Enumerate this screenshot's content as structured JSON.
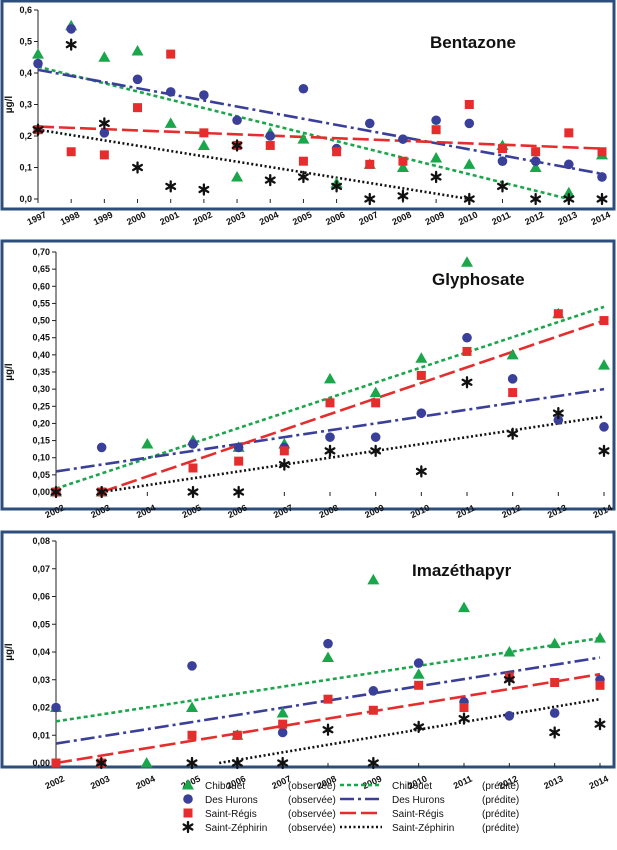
{
  "colors": {
    "Chibouet": "#1aa64a",
    "Des Hurons": "#3a3f9a",
    "Saint-Régis": "#e52d2d",
    "Saint-Zéphirin": "#111111",
    "frame": "#2d4d7a"
  },
  "legend": {
    "entries": [
      {
        "series": "Chibouet",
        "label": "Chibouet",
        "obs": "(observée)",
        "pred": "(prédite)",
        "marker": "triangle",
        "dash": "4,3"
      },
      {
        "series": "Des Hurons",
        "label": "Des Hurons",
        "obs": "(observée)",
        "pred": "(prédite)",
        "marker": "circle",
        "dash": "14,4,3,4"
      },
      {
        "series": "Saint-Régis",
        "label": "Saint-Régis",
        "obs": "(observée)",
        "pred": "(prédite)",
        "marker": "square",
        "dash": "16,5"
      },
      {
        "series": "Saint-Zéphirin",
        "label": "Saint-Zéphirin",
        "obs": "(observée)",
        "pred": "(prédite)",
        "marker": "asterisk",
        "dash": "2,2.5"
      }
    ]
  },
  "chart_data": [
    {
      "type": "scatter",
      "title": "Bentazone",
      "ylabel": "µg/l",
      "xlabel": "",
      "xlim": [
        1997,
        2014
      ],
      "ylim": [
        0,
        0.6
      ],
      "x_ticks": [
        1997,
        1998,
        1999,
        2000,
        2001,
        2002,
        2003,
        2004,
        2005,
        2006,
        2007,
        2008,
        2009,
        2010,
        2011,
        2012,
        2013,
        2014
      ],
      "y_ticks": [
        0,
        0.1,
        0.2,
        0.3,
        0.4,
        0.5,
        0.6
      ],
      "y_tick_labels": [
        "0,0",
        "0,1",
        "0,2",
        "0,3",
        "0,4",
        "0,5",
        "0,6"
      ],
      "series": [
        {
          "name": "Chibouet",
          "marker": "triangle",
          "points": [
            [
              1997,
              0.46
            ],
            [
              1998,
              0.55
            ],
            [
              1999,
              0.45
            ],
            [
              2000,
              0.47
            ],
            [
              2001,
              0.24
            ],
            [
              2002,
              0.17
            ],
            [
              2003,
              0.07
            ],
            [
              2004,
              0.21
            ],
            [
              2005,
              0.19
            ],
            [
              2006,
              0.05
            ],
            [
              2007,
              0.11
            ],
            [
              2008,
              0.1
            ],
            [
              2009,
              0.13
            ],
            [
              2010,
              0.11
            ],
            [
              2011,
              0.17
            ],
            [
              2012,
              0.1
            ],
            [
              2013,
              0.02
            ],
            [
              2014,
              0.14
            ]
          ]
        },
        {
          "name": "Des Hurons",
          "marker": "circle",
          "points": [
            [
              1997,
              0.43
            ],
            [
              1998,
              0.54
            ],
            [
              1999,
              0.21
            ],
            [
              2000,
              0.38
            ],
            [
              2001,
              0.34
            ],
            [
              2002,
              0.33
            ],
            [
              2003,
              0.25
            ],
            [
              2004,
              0.2
            ],
            [
              2005,
              0.35
            ],
            [
              2006,
              0.16
            ],
            [
              2007,
              0.24
            ],
            [
              2008,
              0.19
            ],
            [
              2009,
              0.25
            ],
            [
              2010,
              0.24
            ],
            [
              2011,
              0.12
            ],
            [
              2012,
              0.12
            ],
            [
              2013,
              0.11
            ],
            [
              2014,
              0.07
            ]
          ]
        },
        {
          "name": "Saint-Régis",
          "marker": "square",
          "points": [
            [
              1997,
              0.22
            ],
            [
              1998,
              0.15
            ],
            [
              1999,
              0.14
            ],
            [
              2000,
              0.29
            ],
            [
              2001,
              0.46
            ],
            [
              2002,
              0.21
            ],
            [
              2003,
              0.17
            ],
            [
              2004,
              0.17
            ],
            [
              2005,
              0.12
            ],
            [
              2006,
              0.15
            ],
            [
              2007,
              0.11
            ],
            [
              2008,
              0.12
            ],
            [
              2009,
              0.22
            ],
            [
              2010,
              0.3
            ],
            [
              2011,
              0.16
            ],
            [
              2012,
              0.15
            ],
            [
              2013,
              0.21
            ],
            [
              2014,
              0.15
            ]
          ]
        },
        {
          "name": "Saint-Zéphirin",
          "marker": "asterisk",
          "points": [
            [
              1997,
              0.22
            ],
            [
              1998,
              0.49
            ],
            [
              1999,
              0.24
            ],
            [
              2000,
              0.1
            ],
            [
              2001,
              0.04
            ],
            [
              2002,
              0.03
            ],
            [
              2003,
              0.17
            ],
            [
              2004,
              0.06
            ],
            [
              2005,
              0.07
            ],
            [
              2006,
              0.04
            ],
            [
              2007,
              0.0
            ],
            [
              2008,
              0.01
            ],
            [
              2009,
              0.07
            ],
            [
              2010,
              0.0
            ],
            [
              2011,
              0.04
            ],
            [
              2012,
              0.0
            ],
            [
              2013,
              0.0
            ],
            [
              2014,
              0.0
            ]
          ]
        }
      ],
      "trend_lines": [
        {
          "name": "Chibouet",
          "from": [
            1997,
            0.42
          ],
          "to": [
            2013,
            0.0
          ]
        },
        {
          "name": "Des Hurons",
          "from": [
            1997,
            0.41
          ],
          "to": [
            2014,
            0.08
          ]
        },
        {
          "name": "Saint-Régis",
          "from": [
            1997,
            0.23
          ],
          "to": [
            2014,
            0.16
          ]
        },
        {
          "name": "Saint-Zéphirin",
          "from": [
            1997,
            0.22
          ],
          "to": [
            2010,
            0.0
          ]
        }
      ]
    },
    {
      "type": "scatter",
      "title": "Glyphosate",
      "ylabel": "µg/l",
      "xlabel": "",
      "xlim": [
        2002,
        2014
      ],
      "ylim": [
        0,
        0.7
      ],
      "x_ticks": [
        2002,
        2003,
        2004,
        2005,
        2006,
        2007,
        2008,
        2009,
        2010,
        2011,
        2012,
        2013,
        2014
      ],
      "y_ticks": [
        0,
        0.05,
        0.1,
        0.15,
        0.2,
        0.25,
        0.3,
        0.35,
        0.4,
        0.45,
        0.5,
        0.55,
        0.6,
        0.65,
        0.7
      ],
      "y_tick_labels": [
        "0,00",
        "0,05",
        "0,10",
        "0,15",
        "0,20",
        "0,25",
        "0,30",
        "0,35",
        "0,40",
        "0,45",
        "0,50",
        "0,55",
        "0,60",
        "0,65",
        "0,70"
      ],
      "series": [
        {
          "name": "Chibouet",
          "marker": "triangle",
          "points": [
            [
              2002,
              0.0
            ],
            [
              2003,
              0.0
            ],
            [
              2004,
              0.14
            ],
            [
              2005,
              0.15
            ],
            [
              2006,
              0.13
            ],
            [
              2007,
              0.14
            ],
            [
              2008,
              0.33
            ],
            [
              2009,
              0.29
            ],
            [
              2010,
              0.39
            ],
            [
              2011,
              0.67
            ],
            [
              2012,
              0.4
            ],
            [
              2013,
              0.52
            ],
            [
              2014,
              0.37
            ]
          ]
        },
        {
          "name": "Des Hurons",
          "marker": "circle",
          "points": [
            [
              2002,
              0.0
            ],
            [
              2003,
              0.13
            ],
            [
              2005,
              0.14
            ],
            [
              2006,
              0.13
            ],
            [
              2007,
              0.13
            ],
            [
              2008,
              0.16
            ],
            [
              2009,
              0.16
            ],
            [
              2010,
              0.23
            ],
            [
              2011,
              0.45
            ],
            [
              2012,
              0.33
            ],
            [
              2013,
              0.21
            ],
            [
              2014,
              0.19
            ]
          ]
        },
        {
          "name": "Saint-Régis",
          "marker": "square",
          "points": [
            [
              2002,
              0.0
            ],
            [
              2003,
              0.0
            ],
            [
              2005,
              0.07
            ],
            [
              2006,
              0.09
            ],
            [
              2007,
              0.12
            ],
            [
              2008,
              0.26
            ],
            [
              2009,
              0.26
            ],
            [
              2010,
              0.34
            ],
            [
              2011,
              0.41
            ],
            [
              2012,
              0.29
            ],
            [
              2013,
              0.52
            ],
            [
              2014,
              0.5
            ]
          ]
        },
        {
          "name": "Saint-Zéphirin",
          "marker": "asterisk",
          "points": [
            [
              2002,
              0.0
            ],
            [
              2003,
              0.0
            ],
            [
              2005,
              0.0
            ],
            [
              2006,
              0.0
            ],
            [
              2007,
              0.08
            ],
            [
              2008,
              0.12
            ],
            [
              2009,
              0.12
            ],
            [
              2010,
              0.06
            ],
            [
              2011,
              0.32
            ],
            [
              2012,
              0.17
            ],
            [
              2013,
              0.23
            ],
            [
              2014,
              0.12
            ]
          ]
        }
      ],
      "trend_lines": [
        {
          "name": "Chibouet",
          "from": [
            2002,
            0.01
          ],
          "to": [
            2014,
            0.54
          ]
        },
        {
          "name": "Des Hurons",
          "from": [
            2002,
            0.06
          ],
          "to": [
            2014,
            0.3
          ]
        },
        {
          "name": "Saint-Régis",
          "from": [
            2003,
            0.0
          ],
          "to": [
            2014,
            0.5
          ]
        },
        {
          "name": "Saint-Zéphirin",
          "from": [
            2003,
            0.0
          ],
          "to": [
            2014,
            0.22
          ]
        }
      ]
    },
    {
      "type": "scatter",
      "title": "Imazéthapyr",
      "ylabel": "µg/l",
      "xlabel": "",
      "xlim": [
        2002,
        2014
      ],
      "ylim": [
        0,
        0.08
      ],
      "x_ticks": [
        2002,
        2003,
        2004,
        2005,
        2006,
        2007,
        2008,
        2009,
        2010,
        2011,
        2012,
        2013,
        2014
      ],
      "y_ticks": [
        0,
        0.01,
        0.02,
        0.03,
        0.04,
        0.05,
        0.06,
        0.07,
        0.08
      ],
      "y_tick_labels": [
        "0,00",
        "0,01",
        "0,02",
        "0,03",
        "0,04",
        "0,05",
        "0,06",
        "0,07",
        "0,08"
      ],
      "series": [
        {
          "name": "Chibouet",
          "marker": "triangle",
          "points": [
            [
              2002,
              0.02
            ],
            [
              2003,
              0.0
            ],
            [
              2004,
              0.0
            ],
            [
              2005,
              0.02
            ],
            [
              2006,
              0.01
            ],
            [
              2007,
              0.018
            ],
            [
              2008,
              0.038
            ],
            [
              2009,
              0.066
            ],
            [
              2010,
              0.032
            ],
            [
              2011,
              0.056
            ],
            [
              2012,
              0.04
            ],
            [
              2013,
              0.043
            ],
            [
              2014,
              0.045
            ]
          ]
        },
        {
          "name": "Des Hurons",
          "marker": "circle",
          "points": [
            [
              2002,
              0.02
            ],
            [
              2003,
              0.0
            ],
            [
              2005,
              0.035
            ],
            [
              2006,
              0.01
            ],
            [
              2007,
              0.011
            ],
            [
              2008,
              0.043
            ],
            [
              2009,
              0.026
            ],
            [
              2010,
              0.036
            ],
            [
              2011,
              0.022
            ],
            [
              2012,
              0.017
            ],
            [
              2013,
              0.018
            ],
            [
              2014,
              0.03
            ]
          ]
        },
        {
          "name": "Saint-Régis",
          "marker": "square",
          "points": [
            [
              2002,
              0.0
            ],
            [
              2003,
              0.0
            ],
            [
              2005,
              0.01
            ],
            [
              2006,
              0.01
            ],
            [
              2007,
              0.014
            ],
            [
              2008,
              0.023
            ],
            [
              2009,
              0.019
            ],
            [
              2010,
              0.028
            ],
            [
              2011,
              0.02
            ],
            [
              2012,
              0.031
            ],
            [
              2013,
              0.029
            ],
            [
              2014,
              0.028
            ]
          ]
        },
        {
          "name": "Saint-Zéphirin",
          "marker": "asterisk",
          "points": [
            [
              2003,
              0.0
            ],
            [
              2005,
              0.0
            ],
            [
              2006,
              0.0
            ],
            [
              2007,
              0.0
            ],
            [
              2008,
              0.012
            ],
            [
              2009,
              0.0
            ],
            [
              2010,
              0.013
            ],
            [
              2011,
              0.016
            ],
            [
              2012,
              0.03
            ],
            [
              2013,
              0.011
            ],
            [
              2014,
              0.014
            ]
          ]
        }
      ],
      "trend_lines": [
        {
          "name": "Chibouet",
          "from": [
            2002,
            0.015
          ],
          "to": [
            2014,
            0.045
          ]
        },
        {
          "name": "Des Hurons",
          "from": [
            2002,
            0.007
          ],
          "to": [
            2014,
            0.038
          ]
        },
        {
          "name": "Saint-Régis",
          "from": [
            2002,
            0.0
          ],
          "to": [
            2014,
            0.032
          ]
        },
        {
          "name": "Saint-Zéphirin",
          "from": [
            2005.6,
            0.0
          ],
          "to": [
            2014,
            0.023
          ]
        }
      ]
    }
  ]
}
